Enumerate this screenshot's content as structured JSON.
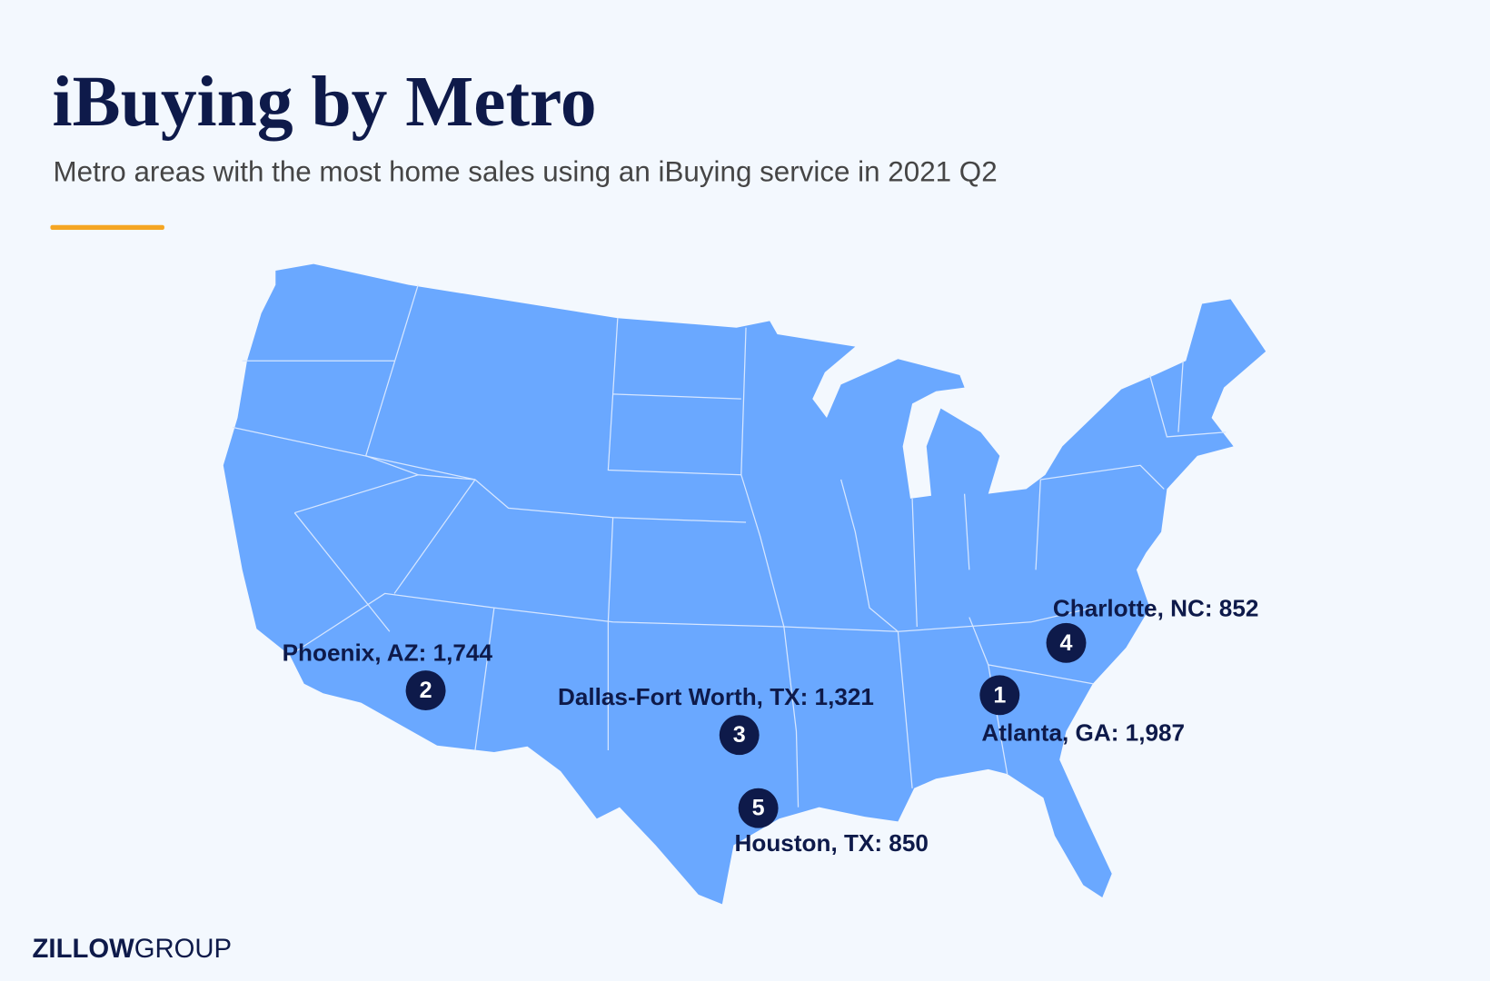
{
  "header": {
    "title": "iBuying by Metro",
    "subtitle": "Metro areas with the most home sales using an iBuying service in 2021 Q2"
  },
  "markers": [
    {
      "rank": "1",
      "label": "Atlanta, GA: 1,987"
    },
    {
      "rank": "2",
      "label": "Phoenix, AZ: 1,744"
    },
    {
      "rank": "3",
      "label": "Dallas-Fort Worth, TX: 1,321"
    },
    {
      "rank": "4",
      "label": "Charlotte, NC: 852"
    },
    {
      "rank": "5",
      "label": "Houston, TX: 850"
    }
  ],
  "logo": {
    "brand": "ZILLOW",
    "suffix": "GROUP"
  }
}
